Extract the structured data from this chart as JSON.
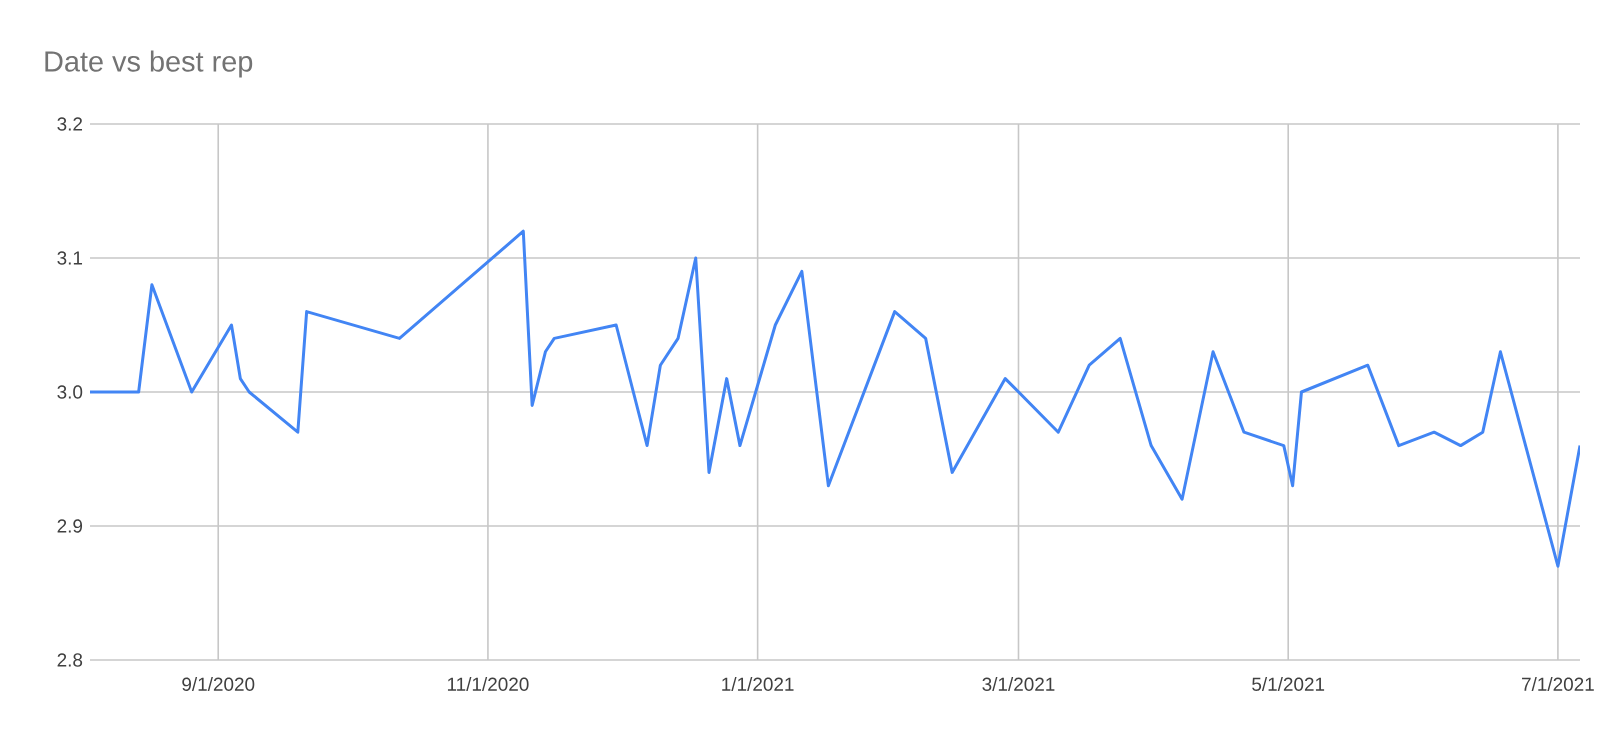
{
  "chart_data": {
    "type": "line",
    "title": "Date vs best rep",
    "color": "#4285f4",
    "grid": true,
    "marker": "none",
    "line_style": "solid",
    "x": [
      "2020-08-03",
      "2020-08-14",
      "2020-08-17",
      "2020-08-26",
      "2020-09-04",
      "2020-09-06",
      "2020-09-08",
      "2020-09-19",
      "2020-09-21",
      "2020-10-12",
      "2020-11-09",
      "2020-11-11",
      "2020-11-14",
      "2020-11-16",
      "2020-11-30",
      "2020-12-07",
      "2020-12-10",
      "2020-12-14",
      "2020-12-18",
      "2020-12-21",
      "2020-12-25",
      "2020-12-28",
      "2021-01-05",
      "2021-01-11",
      "2021-01-17",
      "2021-02-01",
      "2021-02-08",
      "2021-02-14",
      "2021-02-26",
      "2021-03-10",
      "2021-03-17",
      "2021-03-24",
      "2021-03-31",
      "2021-04-07",
      "2021-04-14",
      "2021-04-21",
      "2021-04-30",
      "2021-05-02",
      "2021-05-04",
      "2021-05-19",
      "2021-05-26",
      "2021-06-03",
      "2021-06-09",
      "2021-06-14",
      "2021-06-18",
      "2021-07-01",
      "2021-07-06"
    ],
    "values": [
      3.0,
      3.0,
      3.08,
      3.0,
      3.05,
      3.01,
      3.0,
      2.97,
      3.06,
      3.04,
      3.12,
      2.99,
      3.03,
      3.04,
      3.05,
      2.96,
      3.02,
      3.04,
      3.1,
      2.94,
      3.01,
      2.96,
      3.05,
      3.09,
      2.93,
      3.06,
      3.04,
      2.94,
      3.01,
      2.97,
      3.02,
      3.04,
      2.96,
      2.92,
      3.03,
      2.97,
      2.96,
      2.93,
      3.0,
      3.02,
      2.96,
      2.97,
      2.96,
      2.97,
      3.03,
      2.87,
      2.96
    ],
    "xlim": [
      "2020-08-03",
      "2021-07-06"
    ],
    "xticks": [
      {
        "value": "2020-09-01",
        "label": "9/1/2020"
      },
      {
        "value": "2020-11-01",
        "label": "11/1/2020"
      },
      {
        "value": "2021-01-01",
        "label": "1/1/2021"
      },
      {
        "value": "2021-03-01",
        "label": "3/1/2021"
      },
      {
        "value": "2021-05-01",
        "label": "5/1/2021"
      },
      {
        "value": "2021-07-01",
        "label": "7/1/2021"
      }
    ],
    "ylim": [
      2.8,
      3.2
    ],
    "yticks": [
      {
        "value": 2.8,
        "label": "2.8"
      },
      {
        "value": 2.9,
        "label": "2.9"
      },
      {
        "value": 3.0,
        "label": "3.0"
      },
      {
        "value": 3.1,
        "label": "3.1"
      },
      {
        "value": 3.2,
        "label": "3.2"
      }
    ]
  }
}
